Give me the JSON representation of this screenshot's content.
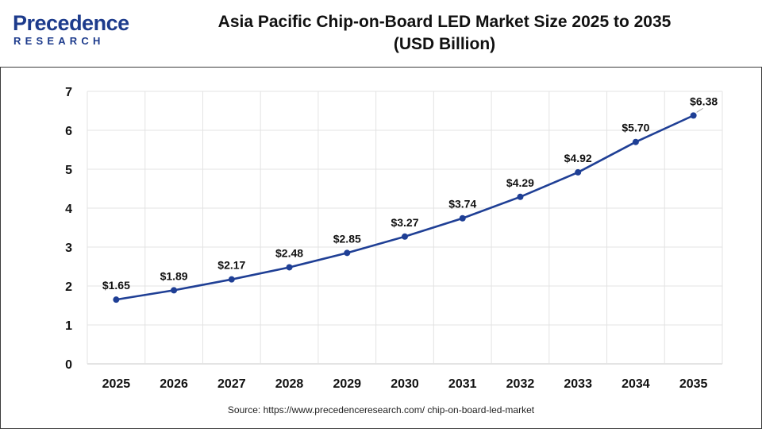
{
  "header": {
    "logo_brand": "Precedence",
    "logo_sub": "RESEARCH",
    "title_line1": "Asia Pacific Chip-on-Board LED Market Size 2025 to 2035",
    "title_line2": "(USD Billion)"
  },
  "footer": {
    "source": "Source: https://www.precedenceresearch.com/ chip-on-board-led-market"
  },
  "colors": {
    "line": "#1f3f95",
    "brand": "#1d3b8c",
    "grid": "#e3e3e3",
    "text": "#111111"
  },
  "chart_data": {
    "type": "line",
    "title": "Asia Pacific Chip-on-Board LED Market Size 2025 to 2035 (USD Billion)",
    "categories": [
      "2025",
      "2026",
      "2027",
      "2028",
      "2029",
      "2030",
      "2031",
      "2032",
      "2033",
      "2034",
      "2035"
    ],
    "series": [
      {
        "values": [
          1.65,
          1.89,
          2.17,
          2.48,
          2.85,
          3.27,
          3.74,
          4.29,
          4.92,
          5.7,
          6.38
        ],
        "labels": [
          "$1.65",
          "$1.89",
          "$2.17",
          "$2.48",
          "$2.85",
          "$3.27",
          "$3.74",
          "$4.29",
          "$4.92",
          "$5.70",
          "$6.38"
        ]
      }
    ],
    "ylim": [
      0,
      7
    ],
    "yticks": [
      "0",
      "1",
      "2",
      "3",
      "4",
      "5",
      "6",
      "7"
    ],
    "xlabel": "",
    "ylabel": "",
    "grid": true,
    "legend": "none"
  }
}
